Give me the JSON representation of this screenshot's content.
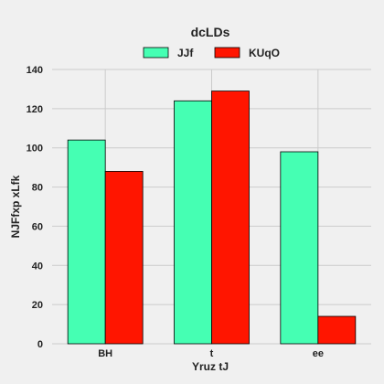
{
  "chart_data": {
    "type": "bar",
    "title": "dcLDs",
    "xlabel": "Yruz tJ",
    "ylabel": "NJFfxp xLfk",
    "categories": [
      "BH",
      "t",
      "ee"
    ],
    "series": [
      {
        "name": "JJf",
        "values": [
          104,
          124,
          98
        ],
        "color": "#45ffb3"
      },
      {
        "name": "KUqO",
        "values": [
          88,
          129,
          14
        ],
        "color": "#ff1500"
      }
    ],
    "ylim": [
      0,
      140
    ],
    "yticks": [
      0,
      20,
      40,
      60,
      80,
      100,
      120,
      140
    ],
    "grid": true,
    "legend_position": "top-center"
  }
}
